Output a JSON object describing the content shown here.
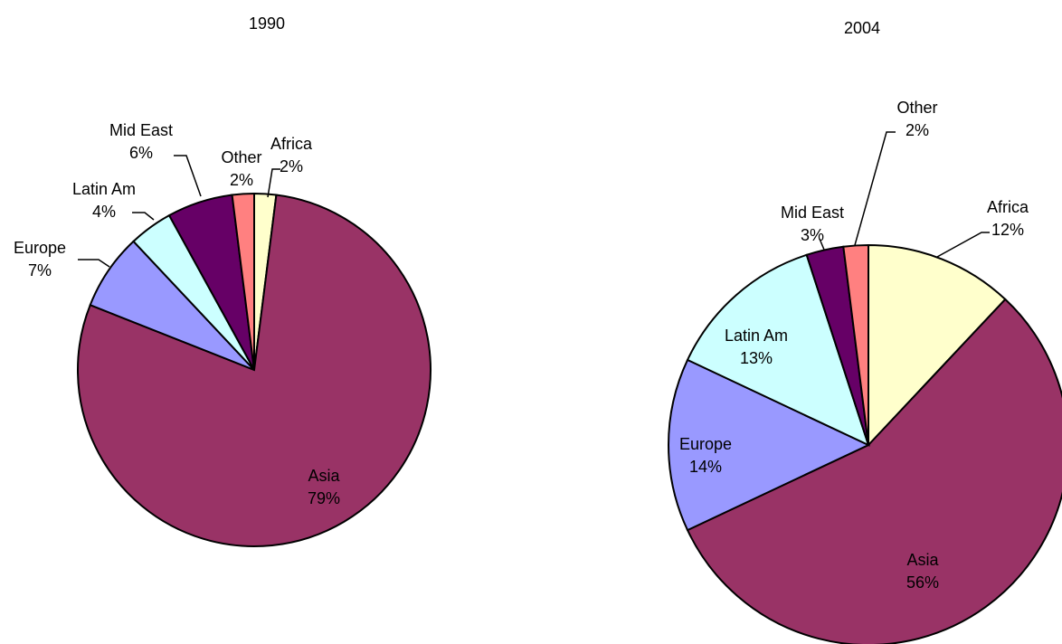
{
  "chart_data": [
    {
      "type": "pie",
      "title": "1990",
      "categories": [
        "Africa",
        "Asia",
        "Europe",
        "Latin Am",
        "Mid East",
        "Other"
      ],
      "values": [
        2,
        79,
        7,
        4,
        6,
        2
      ],
      "value_labels": [
        "2%",
        "79%",
        "7%",
        "4%",
        "6%",
        "2%"
      ],
      "colors": [
        "#ffffcc",
        "#993366",
        "#9999ff",
        "#ccffff",
        "#660066",
        "#ff8080"
      ]
    },
    {
      "type": "pie",
      "title": "2004",
      "categories": [
        "Africa",
        "Asia",
        "Europe",
        "Latin Am",
        "Mid East",
        "Other"
      ],
      "values": [
        12,
        56,
        14,
        13,
        3,
        2
      ],
      "value_labels": [
        "12%",
        "56%",
        "14%",
        "13%",
        "3%",
        "2%"
      ],
      "colors": [
        "#ffffcc",
        "#993366",
        "#9999ff",
        "#ccffff",
        "#660066",
        "#ff8080"
      ]
    }
  ]
}
